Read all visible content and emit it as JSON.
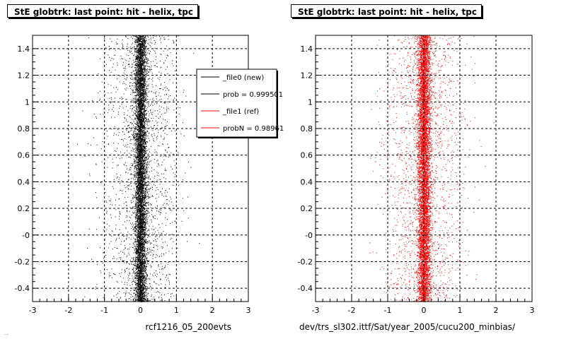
{
  "chart_data": [
    {
      "type": "scatter",
      "title": "StE globtrk: last point: hit - helix, tpc",
      "xlabel": "rcf1216_05_200evts",
      "ylabel": "",
      "xlim": [
        -3,
        3
      ],
      "ylim": [
        -0.5,
        1.5
      ],
      "x_ticks": [
        "-3",
        "-2",
        "-1",
        "0",
        "1",
        "2",
        "3"
      ],
      "y_ticks": [
        "-0.4",
        "-0.2",
        "-0",
        "0.2",
        "0.4",
        "0.6",
        "0.8",
        "1",
        "1.2",
        "1.4"
      ],
      "grid": true,
      "marker_color": "#000000",
      "distribution": {
        "center": 0.0,
        "core_sigma": 0.08,
        "tail_sigma": 0.5
      },
      "legend": {
        "placement": "top-right",
        "entries": [
          {
            "label": "_file0 (new)",
            "color": "#000000"
          },
          {
            "label": "prob = 0.999501",
            "color": "#000000"
          },
          {
            "label": "_file1 (ref)",
            "color": "#ff0000"
          },
          {
            "label": "probN = 0.98961",
            "color": "#ff0000"
          }
        ]
      }
    },
    {
      "type": "scatter",
      "title": "StE globtrk: last point: hit - helix, tpc",
      "xlabel": "dev/trs_sl302.ittf/Sat/year_2005/cucu200_minbias/",
      "ylabel": "",
      "xlim": [
        -3,
        3
      ],
      "ylim": [
        -0.5,
        1.5
      ],
      "x_ticks": [
        "-3",
        "-2",
        "-1",
        "0",
        "1",
        "2",
        "3"
      ],
      "y_ticks": [
        "-0.4",
        "-0.2",
        "-0",
        "0.2",
        "0.4",
        "0.6",
        "0.8",
        "1",
        "1.2",
        "1.4"
      ],
      "grid": true,
      "marker_color": "#ff0000",
      "distribution": {
        "center": 0.0,
        "core_sigma": 0.09,
        "tail_sigma": 0.55
      }
    }
  ],
  "footnote": "..."
}
